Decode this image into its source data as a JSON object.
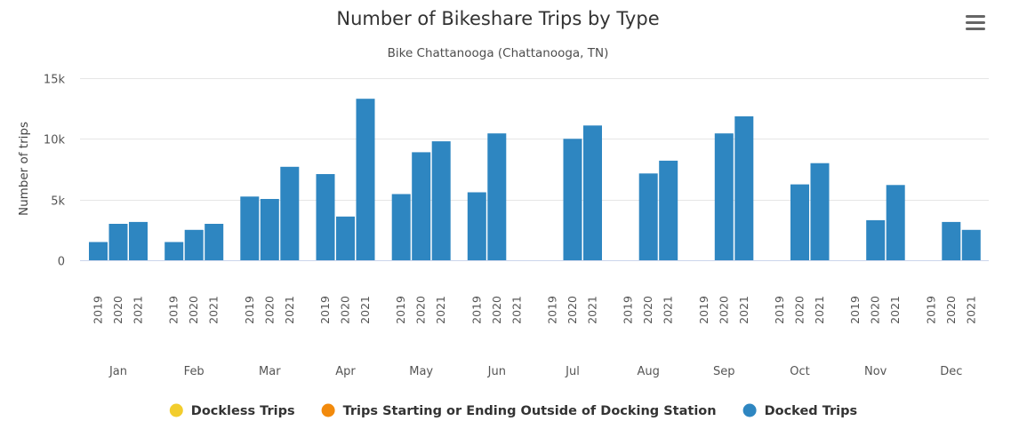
{
  "chart_data": {
    "type": "bar",
    "title": "Number of Bikeshare Trips by Type",
    "subtitle": "Bike Chattanooga (Chattanooga, TN)",
    "ylabel": "Number of trips",
    "xlabel": "",
    "ylim": [
      0,
      15000
    ],
    "yticks": [
      0,
      5000,
      10000,
      15000
    ],
    "ytick_labels": [
      "0",
      "5k",
      "10k",
      "15k"
    ],
    "grid": true,
    "legend_position": "bottom",
    "months": [
      "Jan",
      "Feb",
      "Mar",
      "Apr",
      "May",
      "Jun",
      "Jul",
      "Aug",
      "Sep",
      "Oct",
      "Nov",
      "Dec"
    ],
    "years": [
      "2019",
      "2020",
      "2021"
    ],
    "series": [
      {
        "name": "Dockless Trips",
        "color": "#f2cd2d",
        "values": []
      },
      {
        "name": "Trips Starting or Ending Outside of Docking Station",
        "color": "#f28a0c",
        "values": []
      },
      {
        "name": "Docked Trips",
        "color": "#2e86c1",
        "values": [
          [
            1500,
            3000,
            3150
          ],
          [
            1500,
            2500,
            3000
          ],
          [
            5250,
            5050,
            7700
          ],
          [
            7100,
            3600,
            13300
          ],
          [
            5450,
            8900,
            9800
          ],
          [
            5600,
            10450,
            null
          ],
          [
            null,
            10000,
            11100
          ],
          [
            null,
            7150,
            8200
          ],
          [
            null,
            10450,
            11850
          ],
          [
            null,
            6250,
            8000
          ],
          [
            null,
            3300,
            6200
          ],
          [
            null,
            3150,
            2500
          ]
        ]
      }
    ]
  },
  "menu_icon": "hamburger-menu-icon"
}
